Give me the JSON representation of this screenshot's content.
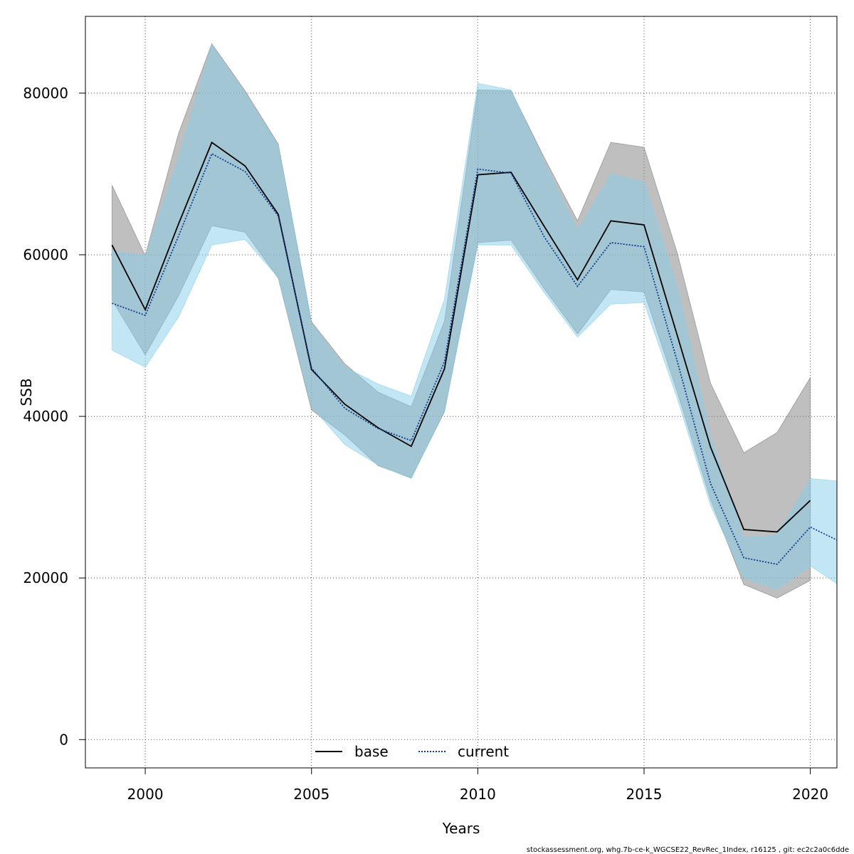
{
  "chart_data": {
    "type": "line",
    "xlabel": "Years",
    "ylabel": "SSB",
    "xlim": [
      1998.2,
      2020.8
    ],
    "ylim": [
      -3500,
      89500
    ],
    "x_ticks": [
      2000,
      2005,
      2010,
      2015,
      2020
    ],
    "y_ticks": [
      0,
      20000,
      40000,
      60000,
      80000
    ],
    "grid": true,
    "legend_position": "bottom-center",
    "series": [
      {
        "name": "base",
        "color": "#000000",
        "band_color": "#808080",
        "line_style": "solid",
        "x": [
          1999,
          2000,
          2001,
          2002,
          2003,
          2004,
          2005,
          2006,
          2007,
          2008,
          2009,
          2010,
          2011,
          2012,
          2013,
          2014,
          2015,
          2016,
          2017,
          2018,
          2019,
          2020
        ],
        "values": [
          61200,
          53200,
          63800,
          73900,
          71000,
          65000,
          45800,
          41500,
          38600,
          36300,
          45900,
          69900,
          70200,
          63500,
          56900,
          64200,
          63700,
          50000,
          36200,
          26000,
          25700,
          29600
        ],
        "upper": [
          68600,
          59900,
          75000,
          86100,
          80300,
          73700,
          51700,
          46500,
          43000,
          41200,
          51800,
          80400,
          80300,
          72000,
          64200,
          73900,
          73300,
          60200,
          44100,
          35500,
          38000,
          44800
        ],
        "lower": [
          54400,
          47600,
          54900,
          63600,
          62800,
          57100,
          40800,
          37700,
          33900,
          32400,
          40600,
          61500,
          61800,
          55800,
          50200,
          55700,
          55400,
          43000,
          29700,
          19200,
          17500,
          19700
        ]
      },
      {
        "name": "current",
        "color": "#0b3d91",
        "band_color": "#87ceeb",
        "line_style": "dotted",
        "x": [
          1999,
          2000,
          2001,
          2002,
          2003,
          2004,
          2005,
          2006,
          2007,
          2008,
          2009,
          2010,
          2011,
          2012,
          2013,
          2014,
          2015,
          2016,
          2017,
          2018,
          2019,
          2020,
          2020.8
        ],
        "values": [
          54000,
          52500,
          62300,
          72500,
          70300,
          64800,
          46000,
          41000,
          38500,
          37000,
          46800,
          70600,
          70100,
          62200,
          56100,
          61500,
          61000,
          46800,
          31700,
          22500,
          21700,
          26300,
          24700
        ],
        "upper": [
          60500,
          59900,
          72000,
          86000,
          80000,
          73500,
          51500,
          46100,
          44000,
          42500,
          54500,
          81200,
          80400,
          71500,
          63000,
          70000,
          69000,
          56000,
          37500,
          25000,
          25300,
          32300,
          32000
        ],
        "lower": [
          48200,
          46100,
          52300,
          61200,
          61900,
          57200,
          41200,
          36500,
          34000,
          32300,
          40800,
          61200,
          61200,
          55300,
          49800,
          53900,
          54100,
          42200,
          29000,
          20000,
          18600,
          21500,
          19300
        ]
      }
    ]
  },
  "footer": "stockassessment.org, whg.7b-ce-k_WGCSE22_RevRec_1Index, r16125 , git: ec2c2a0c6dde"
}
